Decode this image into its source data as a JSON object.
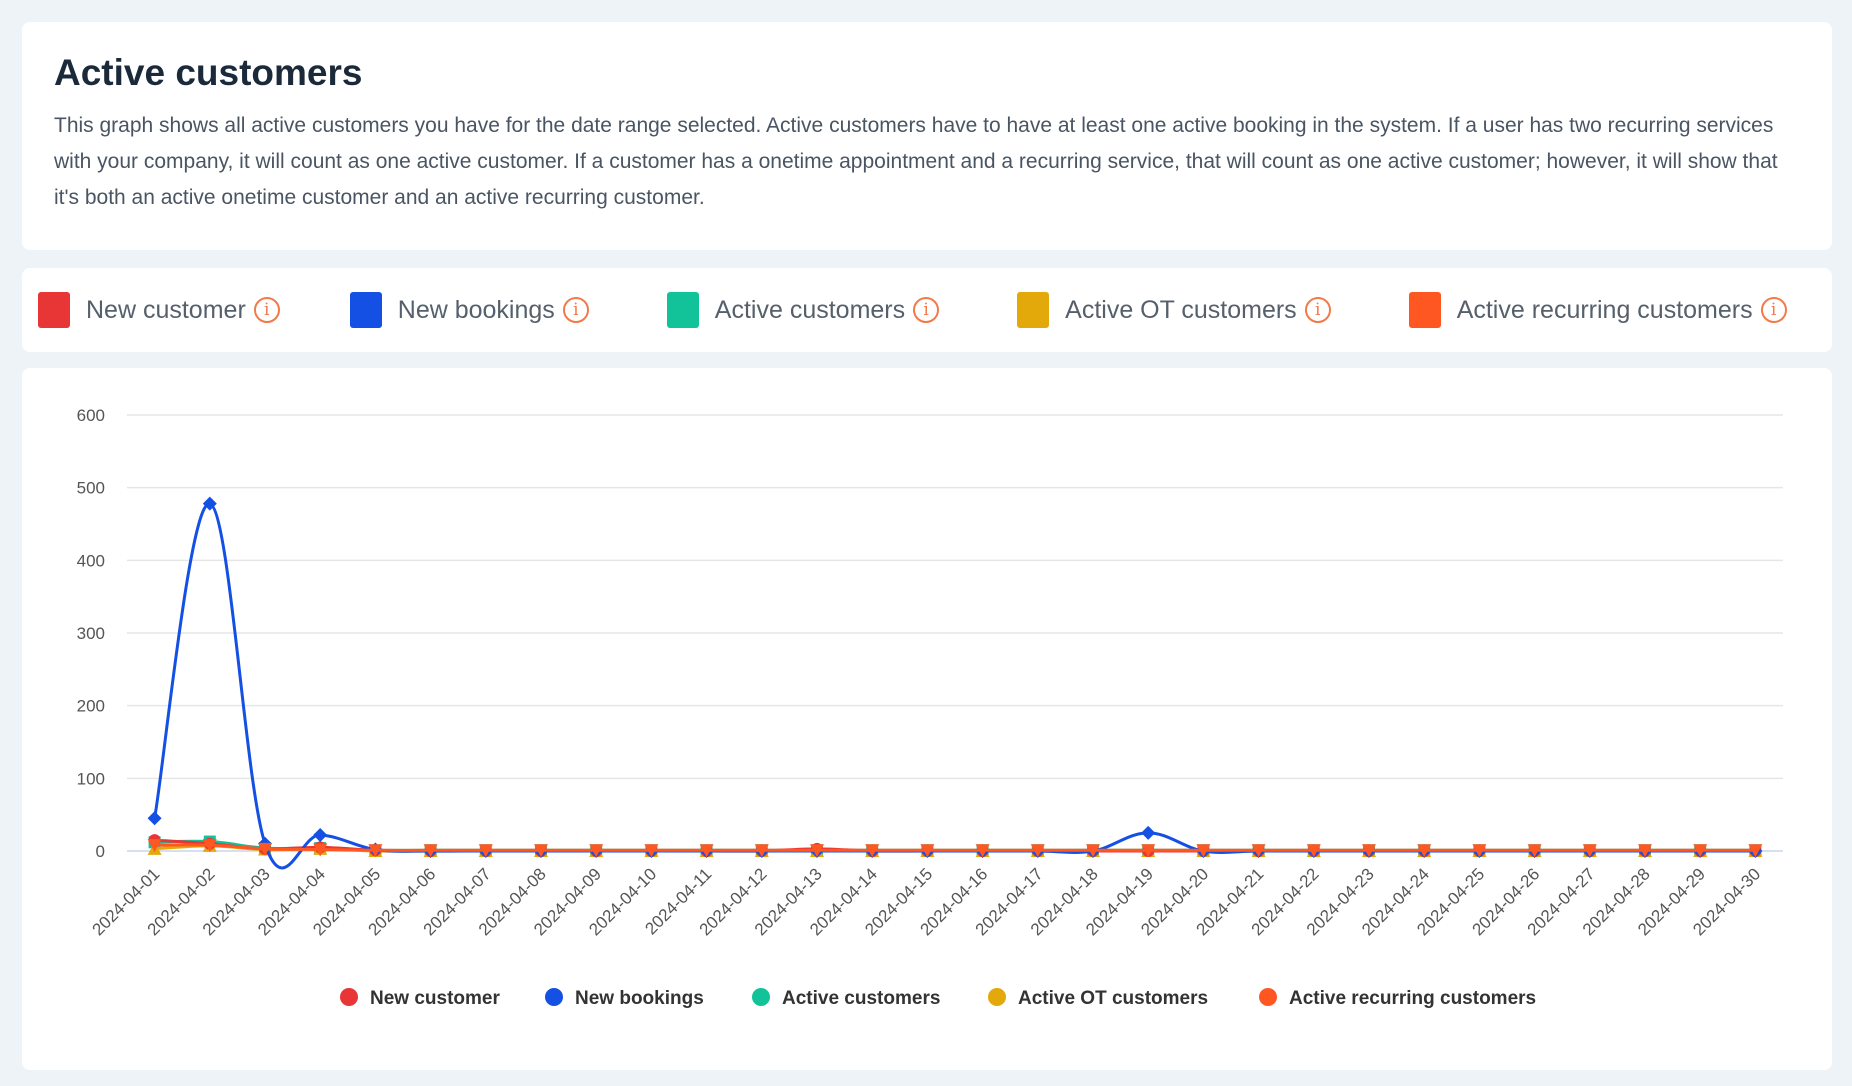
{
  "header": {
    "title": "Active customers",
    "description": "This graph shows all active customers you have for the date range selected. Active customers have to have at least one active booking in the system. If a user has two recurring services with your company, it will count as one active customer. If a customer has a onetime appointment and a recurring service, that will count as one active customer; however, it will show that it's both an active onetime customer and an active recurring customer."
  },
  "legend_items": [
    {
      "label": "New customer",
      "color": "#e83535",
      "info": "i"
    },
    {
      "label": "New bookings",
      "color": "#1450e3",
      "info": "i"
    },
    {
      "label": "Active customers",
      "color": "#12c39a",
      "info": "i"
    },
    {
      "label": "Active OT customers",
      "color": "#e3a90a",
      "info": "i"
    },
    {
      "label": "Active recurring customers",
      "color": "#ff5722",
      "info": "i"
    }
  ],
  "chart_data": {
    "type": "line",
    "title": "",
    "xlabel": "",
    "ylabel": "",
    "ylim": [
      0,
      600
    ],
    "yticks": [
      0,
      100,
      200,
      300,
      400,
      500,
      600
    ],
    "grid": true,
    "legend_position": "bottom",
    "x": [
      "2024-04-01",
      "2024-04-02",
      "2024-04-03",
      "2024-04-04",
      "2024-04-05",
      "2024-04-06",
      "2024-04-07",
      "2024-04-08",
      "2024-04-09",
      "2024-04-10",
      "2024-04-11",
      "2024-04-12",
      "2024-04-13",
      "2024-04-14",
      "2024-04-15",
      "2024-04-16",
      "2024-04-17",
      "2024-04-18",
      "2024-04-19",
      "2024-04-20",
      "2024-04-21",
      "2024-04-22",
      "2024-04-23",
      "2024-04-24",
      "2024-04-25",
      "2024-04-26",
      "2024-04-27",
      "2024-04-28",
      "2024-04-29",
      "2024-04-30"
    ],
    "series": [
      {
        "name": "New customer",
        "color": "#e83535",
        "marker": "circle",
        "values": [
          15,
          10,
          3,
          5,
          1,
          0,
          0,
          0,
          0,
          0,
          0,
          0,
          3,
          0,
          0,
          0,
          0,
          0,
          0,
          0,
          0,
          0,
          0,
          0,
          0,
          0,
          0,
          0,
          0,
          0
        ]
      },
      {
        "name": "New bookings",
        "color": "#1450e3",
        "marker": "diamond",
        "values": [
          45,
          478,
          10,
          22,
          2,
          0,
          0,
          0,
          0,
          0,
          0,
          0,
          0,
          0,
          0,
          0,
          0,
          0,
          25,
          0,
          0,
          0,
          0,
          0,
          0,
          0,
          0,
          0,
          0,
          0
        ]
      },
      {
        "name": "Active customers",
        "color": "#12c39a",
        "marker": "square",
        "values": [
          12,
          13,
          4,
          4,
          1,
          1,
          1,
          1,
          1,
          1,
          1,
          1,
          1,
          1,
          1,
          1,
          1,
          1,
          1,
          1,
          1,
          1,
          1,
          1,
          1,
          1,
          1,
          1,
          1,
          1
        ]
      },
      {
        "name": "Active OT customers",
        "color": "#e3a90a",
        "marker": "triangle",
        "values": [
          3,
          7,
          2,
          3,
          0,
          0,
          0,
          0,
          0,
          0,
          0,
          0,
          0,
          0,
          0,
          0,
          0,
          0,
          0,
          0,
          0,
          0,
          0,
          0,
          0,
          0,
          0,
          0,
          0,
          0
        ]
      },
      {
        "name": "Active recurring customers",
        "color": "#ff5722",
        "marker": "triangle-down",
        "values": [
          8,
          8,
          3,
          2,
          1,
          1,
          1,
          1,
          1,
          1,
          1,
          1,
          1,
          1,
          1,
          1,
          1,
          1,
          1,
          1,
          1,
          1,
          1,
          1,
          1,
          1,
          1,
          1,
          1,
          1
        ]
      }
    ]
  }
}
